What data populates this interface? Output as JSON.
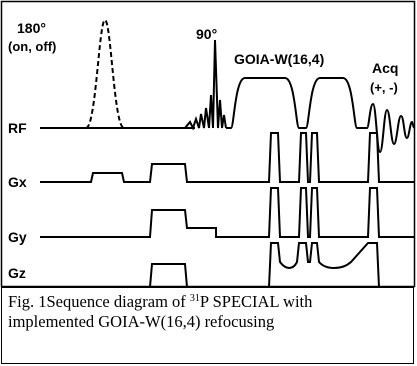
{
  "pulse_labels": {
    "inversion": "180°",
    "inversion_mode": "(on, off)",
    "excitation": "90°",
    "refocusing": "GOIA-W(16,4)",
    "acquisition": "Acq",
    "acquisition_sign": "(+, -)"
  },
  "channels": {
    "rf": "RF",
    "gx": "Gx",
    "gy": "Gy",
    "gz": "Gz"
  },
  "caption": {
    "prefix": "Fig. 1Sequence diagram of ",
    "isotope_mass": "31",
    "suffix_line1": "P SPECIAL with",
    "line2": "implemented GOIA-W(16,4) refocusing"
  }
}
